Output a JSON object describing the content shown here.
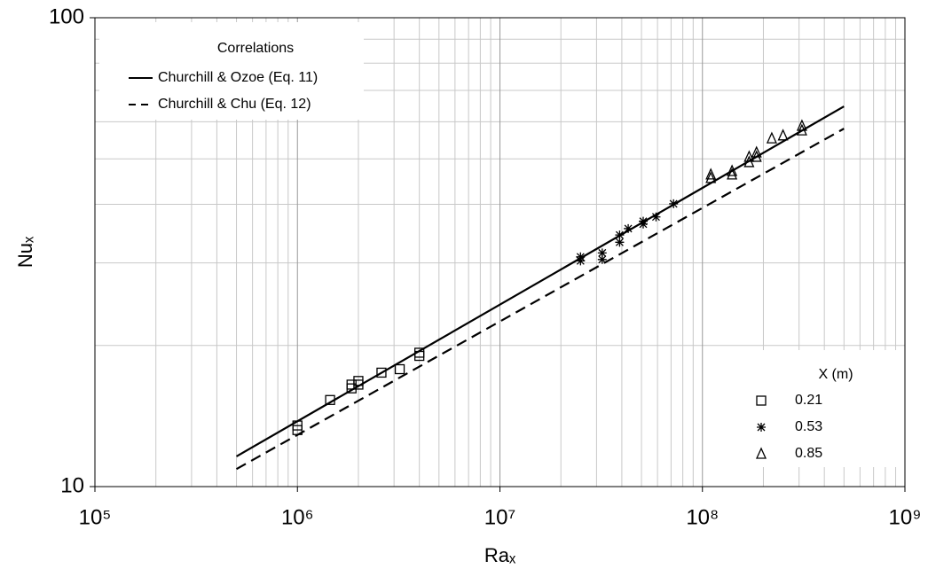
{
  "chart_data": {
    "type": "scatter",
    "x_label": "Raₓ",
    "y_label": "Nuₓ",
    "xlim": [
      100000,
      1000000000
    ],
    "ylim": [
      10,
      100
    ],
    "xticks": [
      {
        "value": 100000,
        "label": "10⁵"
      },
      {
        "value": 1000000,
        "label": "10⁶"
      },
      {
        "value": 10000000,
        "label": "10⁷"
      },
      {
        "value": 100000000,
        "label": "10⁸"
      },
      {
        "value": 1000000000,
        "label": "10⁹"
      }
    ],
    "yticks": [
      10,
      100
    ],
    "log_x": true,
    "log_y": true,
    "grid": true,
    "lines_legend_title": "Correlations",
    "lines": [
      {
        "name": "Churchill & Ozoe (Eq. 11)",
        "color": "#000000",
        "style": "solid",
        "x": [
          500000,
          500000000
        ],
        "values": [
          11.6,
          64.7
        ]
      },
      {
        "name": "Churchill & Chu (Eq. 12)",
        "color": "#000000",
        "style": "dashed",
        "x": [
          500000,
          500000000
        ],
        "values": [
          10.9,
          58
        ]
      }
    ],
    "legend_title": "X (m)",
    "series": [
      {
        "name": "0.21",
        "color": "#000000",
        "marker": "square",
        "x": [
          1000000,
          1000000,
          1450000,
          1850000,
          1850000,
          2000000,
          2000000,
          2600000,
          3200000,
          4000000,
          4000000
        ],
        "values": [
          13.5,
          13.2,
          15.3,
          16.5,
          16.2,
          16.8,
          16.5,
          17.5,
          17.8,
          19.3,
          19.0
        ]
      },
      {
        "name": "0.53",
        "color": "#000000",
        "marker": "asterisk",
        "x": [
          25000000,
          25000000,
          32000000,
          32000000,
          39000000,
          39000000,
          43000000,
          51000000,
          51000000,
          59000000,
          72000000
        ],
        "values": [
          30.9,
          30.3,
          31.5,
          30.5,
          34.4,
          33.2,
          35.5,
          36.8,
          36.3,
          37.6,
          40.1
        ]
      },
      {
        "name": "0.85",
        "color": "#000000",
        "marker": "triangle",
        "x": [
          110000000,
          110000000,
          140000000,
          140000000,
          170000000,
          170000000,
          185000000,
          185000000,
          220000000,
          250000000,
          310000000,
          310000000
        ],
        "values": [
          46.3,
          45.5,
          47.1,
          46.3,
          50.5,
          49.2,
          51.6,
          50.5,
          55.3,
          56.1,
          58.8,
          57.5
        ]
      }
    ]
  }
}
